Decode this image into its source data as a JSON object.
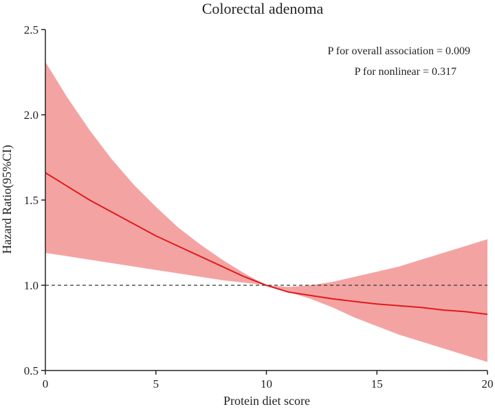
{
  "chart_data": {
    "type": "line",
    "title": "Colorectal adenoma",
    "xlabel": "Protein diet score",
    "ylabel": "Hazard Ratio(95%CI)",
    "xlim": [
      0,
      20
    ],
    "ylim": [
      0.5,
      2.5
    ],
    "xticks": [
      0,
      5,
      10,
      15,
      20
    ],
    "yticks": [
      "0.5",
      "1.0",
      "1.5",
      "2.0",
      "2.5"
    ],
    "reference_line": 1.0,
    "annotations": [
      "P for overall association = 0.009",
      "P for nonlinear = 0.317"
    ],
    "series": [
      {
        "name": "Hazard Ratio",
        "x": [
          0,
          1,
          2,
          3,
          4,
          5,
          6,
          7,
          8,
          9,
          10,
          11,
          12,
          13,
          14,
          15,
          16,
          17,
          18,
          19,
          20
        ],
        "y": [
          1.66,
          1.58,
          1.5,
          1.43,
          1.36,
          1.29,
          1.23,
          1.17,
          1.11,
          1.05,
          1.0,
          0.96,
          0.94,
          0.92,
          0.905,
          0.89,
          0.88,
          0.87,
          0.855,
          0.845,
          0.83
        ],
        "lower": [
          1.19,
          1.17,
          1.15,
          1.13,
          1.11,
          1.09,
          1.07,
          1.05,
          1.03,
          1.015,
          1.0,
          0.96,
          0.92,
          0.87,
          0.81,
          0.76,
          0.71,
          0.67,
          0.63,
          0.59,
          0.55
        ],
        "upper": [
          2.31,
          2.1,
          1.91,
          1.74,
          1.59,
          1.46,
          1.34,
          1.24,
          1.15,
          1.07,
          1.0,
          0.99,
          1.0,
          1.02,
          1.05,
          1.08,
          1.11,
          1.15,
          1.19,
          1.23,
          1.27
        ]
      }
    ],
    "colors": {
      "line": "#e01a1a",
      "band": "#f4a3a3",
      "axis": "#222222",
      "ref": "#333333"
    }
  }
}
